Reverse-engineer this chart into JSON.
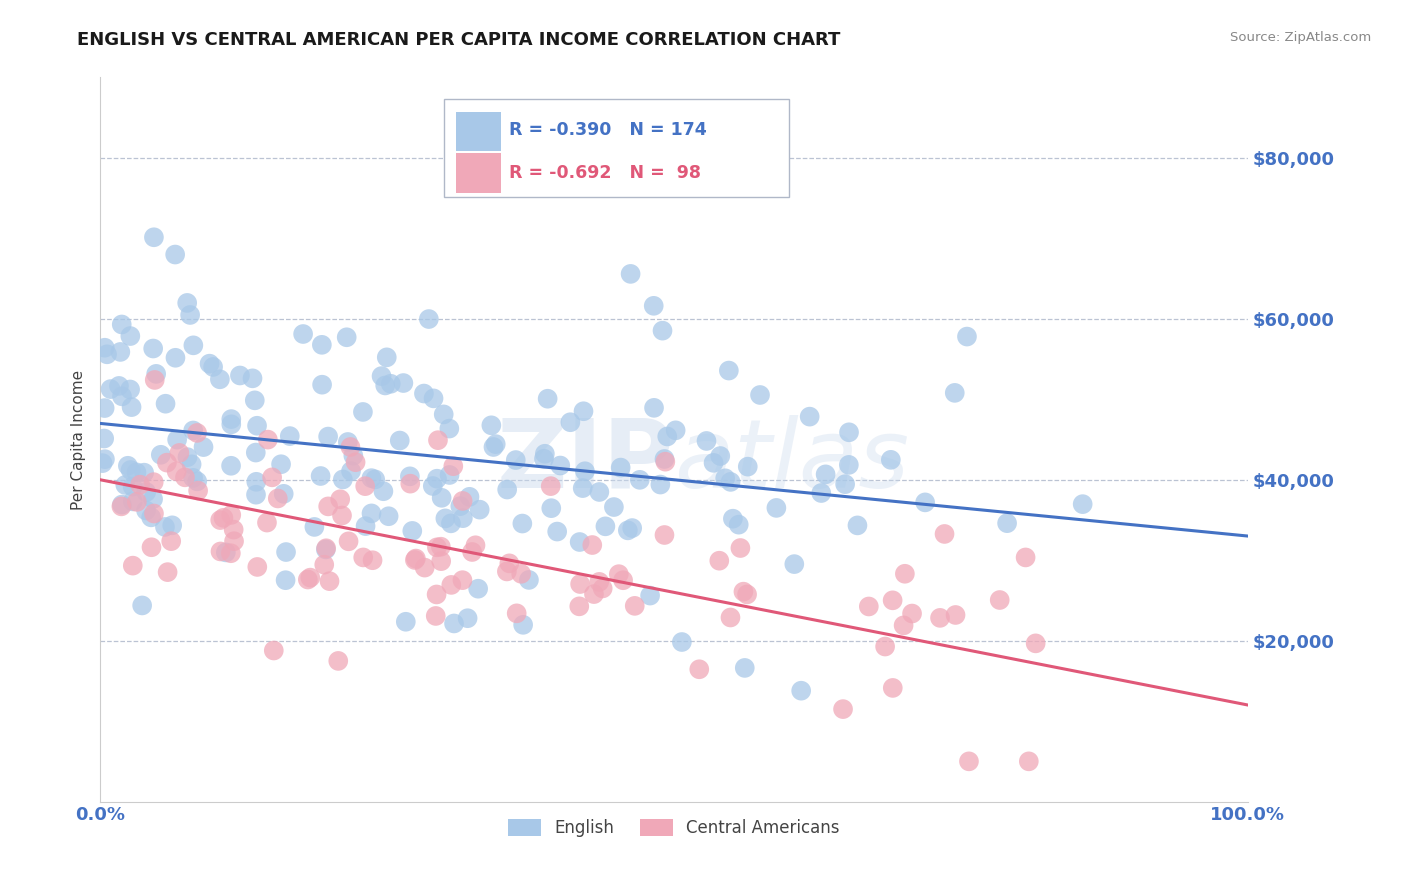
{
  "title": "ENGLISH VS CENTRAL AMERICAN PER CAPITA INCOME CORRELATION CHART",
  "source": "Source: ZipAtlas.com",
  "ylabel": "Per Capita Income",
  "xlim": [
    0,
    1
  ],
  "ylim": [
    0,
    90000
  ],
  "yticks": [
    20000,
    40000,
    60000,
    80000
  ],
  "ytick_labels": [
    "$20,000",
    "$40,000",
    "$60,000",
    "$80,000"
  ],
  "xtick_labels": [
    "0.0%",
    "100.0%"
  ],
  "bg_color": "#ffffff",
  "grid_color": "#aab4c8",
  "english_color": "#a8c8e8",
  "english_line_color": "#4472c4",
  "ca_color": "#f0a8b8",
  "ca_line_color": "#e05878",
  "legend_r1": "-0.390",
  "legend_n1": "174",
  "legend_r2": "-0.692",
  "legend_n2": " 98",
  "english_scatter_seed": 42,
  "ca_scatter_seed": 99,
  "english_n": 174,
  "ca_n": 98,
  "english_intercept": 47000,
  "english_slope": -14000,
  "ca_intercept": 40000,
  "ca_slope": -28000,
  "title_color": "#1a1a1a",
  "axis_label_color": "#444444",
  "tick_color": "#4472c4",
  "tick_fontsize": 13,
  "title_fontsize": 13,
  "watermark_text": "ZIPatlas",
  "watermark_zip": "ZIP",
  "watermark_atlas": "atlas"
}
